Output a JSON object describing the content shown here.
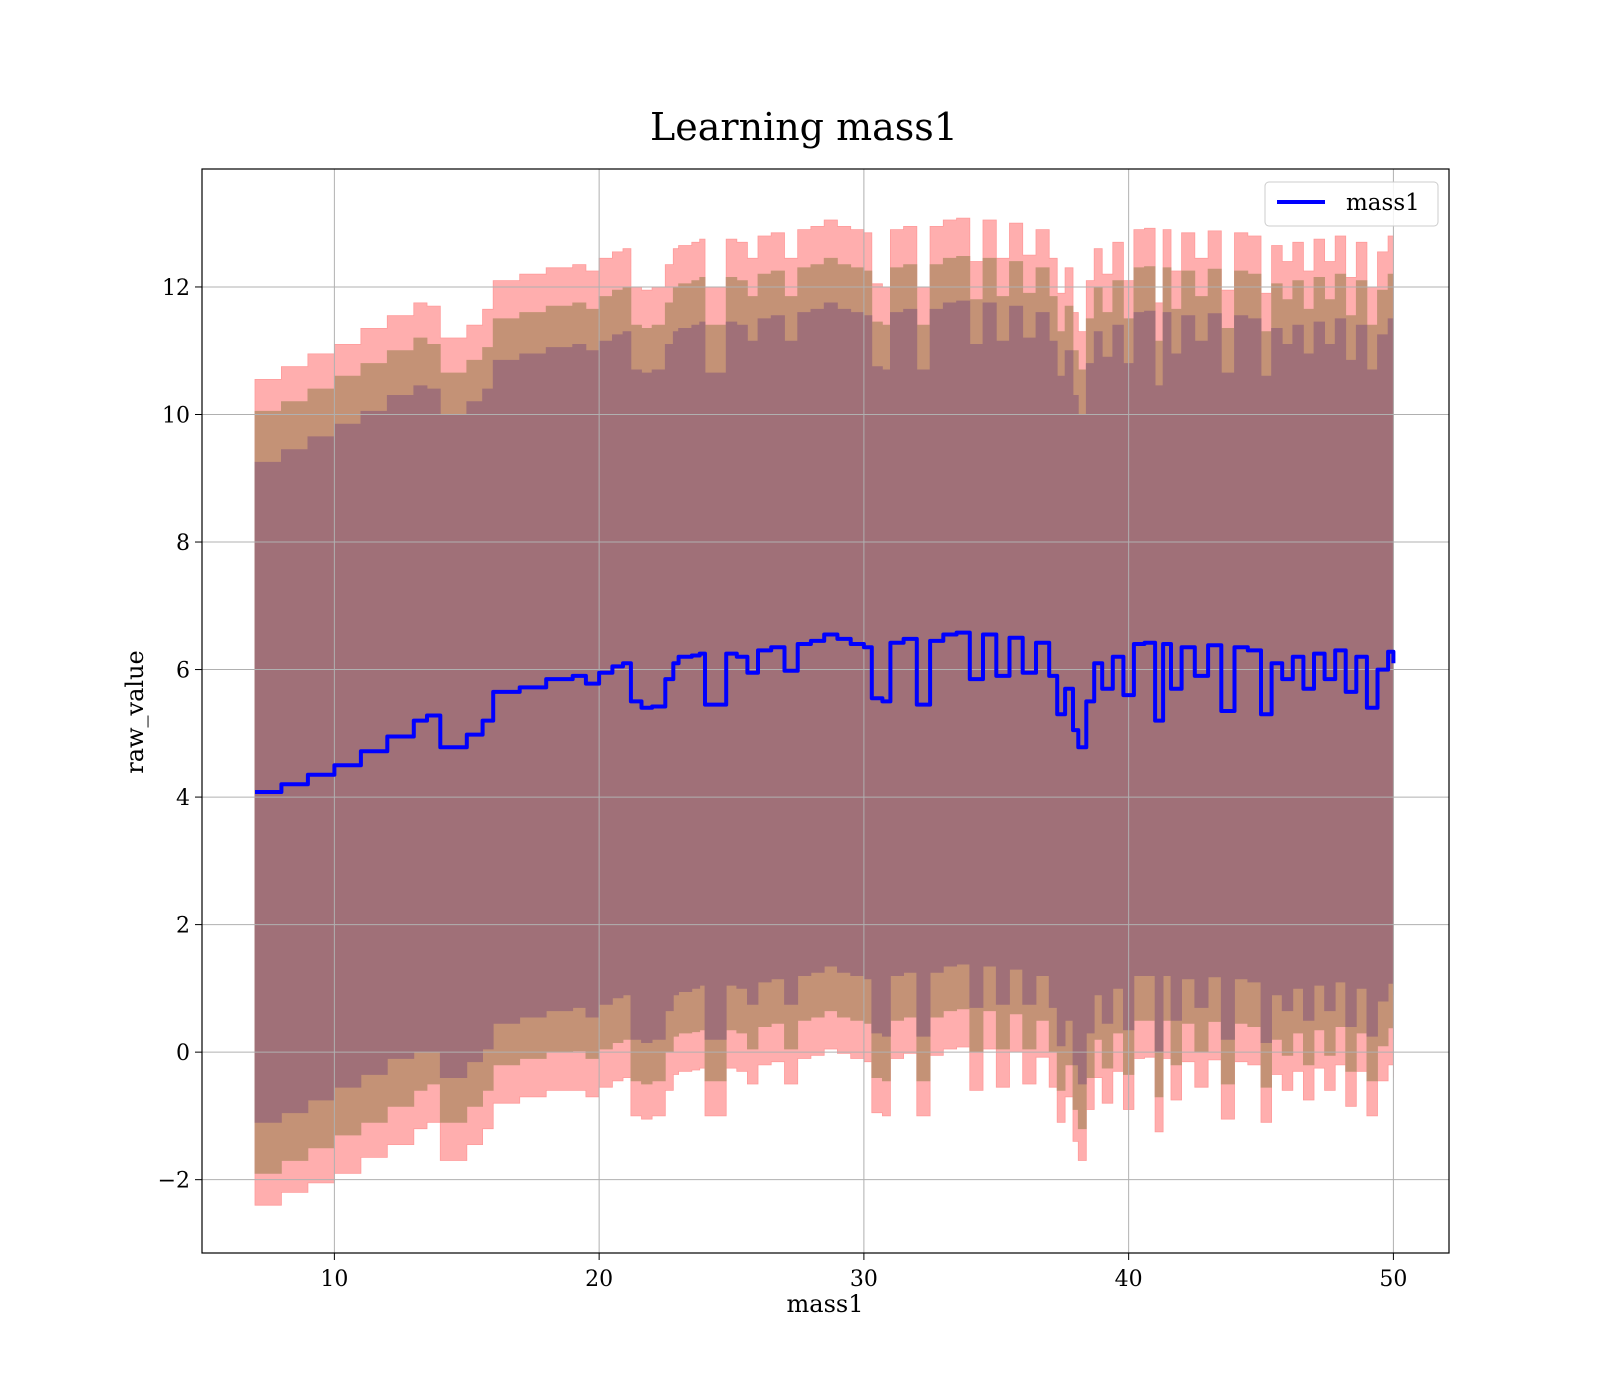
{
  "chart_data": {
    "type": "line",
    "title": "Learning mass1",
    "xlabel": "mass1",
    "ylabel": "raw_value",
    "xlim": [
      5,
      52.1
    ],
    "ylim": [
      -3.15,
      13.85
    ],
    "xticks": [
      10,
      20,
      30,
      40,
      50
    ],
    "yticks": [
      -2,
      0,
      2,
      4,
      6,
      8,
      10,
      12
    ],
    "ytick_labels": [
      "−2",
      "0",
      "2",
      "4",
      "6",
      "8",
      "10",
      "12"
    ],
    "xtick_labels": [
      "10",
      "20",
      "30",
      "40",
      "50"
    ],
    "grid": true,
    "legend": {
      "placement": "top-right",
      "entries": [
        "mass1"
      ]
    },
    "colors": {
      "line": "#0000ff",
      "band_outer": "#ff9a9a",
      "band_mid": "#c49276",
      "band_inner": "#a07078",
      "grid": "#b0b0b0"
    },
    "series": [
      {
        "name": "mass1",
        "x": [
          7.0,
          8.0,
          9.0,
          10.0,
          11.0,
          12.0,
          13.0,
          13.5,
          14.0,
          15.0,
          15.6,
          16.0,
          17.0,
          18.0,
          19.0,
          19.5,
          20.0,
          20.5,
          20.9,
          21.2,
          21.6,
          22.0,
          22.5,
          22.8,
          23.0,
          23.5,
          23.8,
          24.0,
          24.5,
          24.8,
          25.2,
          25.6,
          26.0,
          26.5,
          27.0,
          27.5,
          28.0,
          28.5,
          29.0,
          29.5,
          30.0,
          30.3,
          30.7,
          31.0,
          31.5,
          32.0,
          32.5,
          33.0,
          33.5,
          34.0,
          34.5,
          35.0,
          35.5,
          36.0,
          36.5,
          37.0,
          37.3,
          37.6,
          37.9,
          38.1,
          38.4,
          38.7,
          39.0,
          39.4,
          39.8,
          40.2,
          40.6,
          41.0,
          41.3,
          41.6,
          42.0,
          42.5,
          43.0,
          43.5,
          44.0,
          44.5,
          45.0,
          45.4,
          45.8,
          46.2,
          46.6,
          47.0,
          47.4,
          47.8,
          48.2,
          48.6,
          49.0,
          49.4,
          49.8,
          50.0
        ],
        "y": [
          4.08,
          4.2,
          4.35,
          4.5,
          4.72,
          4.95,
          5.2,
          5.28,
          4.78,
          4.98,
          5.2,
          5.65,
          5.72,
          5.85,
          5.9,
          5.78,
          5.95,
          6.05,
          6.1,
          5.5,
          5.4,
          5.42,
          5.85,
          6.1,
          6.2,
          6.22,
          6.25,
          5.45,
          5.45,
          6.25,
          6.2,
          5.95,
          6.3,
          6.35,
          5.98,
          6.4,
          6.45,
          6.55,
          6.48,
          6.4,
          6.35,
          5.55,
          5.5,
          6.42,
          6.48,
          5.45,
          6.45,
          6.55,
          6.58,
          5.85,
          6.55,
          5.9,
          6.5,
          5.95,
          6.42,
          5.9,
          5.3,
          5.7,
          5.05,
          4.78,
          5.5,
          6.1,
          5.7,
          6.2,
          5.6,
          6.4,
          6.42,
          5.2,
          6.4,
          5.7,
          6.35,
          5.9,
          6.38,
          5.35,
          6.35,
          6.3,
          5.3,
          6.1,
          5.85,
          6.2,
          5.7,
          6.25,
          5.85,
          6.3,
          5.65,
          6.2,
          5.4,
          6.0,
          6.28,
          6.1
        ]
      }
    ],
    "bands": [
      {
        "name": "outer",
        "x": [
          7.0,
          8.0,
          9.0,
          10.0,
          11.0,
          12.0,
          13.0,
          13.5,
          14.0,
          15.0,
          15.6,
          16.0,
          17.0,
          18.0,
          19.0,
          19.5,
          20.0,
          20.5,
          20.9,
          21.2,
          21.6,
          22.0,
          22.5,
          22.8,
          23.0,
          23.5,
          23.8,
          24.0,
          24.5,
          24.8,
          25.2,
          25.6,
          26.0,
          26.5,
          27.0,
          27.5,
          28.0,
          28.5,
          29.0,
          29.5,
          30.0,
          30.3,
          30.7,
          31.0,
          31.5,
          32.0,
          32.5,
          33.0,
          33.5,
          34.0,
          34.5,
          35.0,
          35.5,
          36.0,
          36.5,
          37.0,
          37.3,
          37.6,
          37.9,
          38.1,
          38.4,
          38.7,
          39.0,
          39.4,
          39.8,
          40.2,
          40.6,
          41.0,
          41.3,
          41.6,
          42.0,
          42.5,
          43.0,
          43.5,
          44.0,
          44.5,
          45.0,
          45.4,
          45.8,
          46.2,
          46.6,
          47.0,
          47.4,
          47.8,
          48.2,
          48.6,
          49.0,
          49.4,
          49.8,
          50.0
        ],
        "lower": [
          -2.4,
          -2.2,
          -2.05,
          -1.9,
          -1.65,
          -1.45,
          -1.2,
          -1.1,
          -1.7,
          -1.45,
          -1.2,
          -0.8,
          -0.7,
          -0.6,
          -0.6,
          -0.7,
          -0.55,
          -0.45,
          -0.4,
          -1.0,
          -1.05,
          -1.0,
          -0.6,
          -0.35,
          -0.3,
          -0.28,
          -0.25,
          -1.0,
          -1.0,
          -0.25,
          -0.3,
          -0.5,
          -0.2,
          -0.15,
          -0.5,
          -0.1,
          -0.05,
          0.05,
          -0.02,
          -0.1,
          -0.15,
          -0.95,
          -1.0,
          -0.1,
          -0.02,
          -1.0,
          -0.05,
          0.05,
          0.08,
          -0.6,
          0.05,
          -0.55,
          0.0,
          -0.5,
          -0.08,
          -0.55,
          -1.1,
          -0.7,
          -1.4,
          -1.7,
          -0.9,
          -0.4,
          -0.8,
          -0.3,
          -0.9,
          -0.1,
          -0.08,
          -1.25,
          -0.1,
          -0.75,
          -0.15,
          -0.55,
          -0.12,
          -1.05,
          -0.15,
          -0.2,
          -1.1,
          -0.35,
          -0.6,
          -0.3,
          -0.75,
          -0.25,
          -0.6,
          -0.2,
          -0.85,
          -0.3,
          -1.0,
          -0.45,
          -0.2,
          -0.4
        ],
        "upper": [
          10.55,
          10.75,
          10.95,
          11.1,
          11.35,
          11.55,
          11.75,
          11.7,
          11.2,
          11.4,
          11.65,
          12.1,
          12.2,
          12.3,
          12.35,
          12.25,
          12.45,
          12.55,
          12.6,
          12.0,
          11.95,
          12.0,
          12.35,
          12.6,
          12.65,
          12.7,
          12.75,
          12.0,
          12.0,
          12.75,
          12.7,
          12.45,
          12.8,
          12.85,
          12.45,
          12.9,
          12.95,
          13.05,
          12.95,
          12.9,
          12.85,
          12.05,
          12.0,
          12.9,
          12.95,
          12.0,
          12.95,
          13.05,
          13.08,
          12.4,
          13.05,
          12.45,
          13.0,
          12.5,
          12.9,
          12.45,
          11.9,
          12.3,
          11.6,
          11.3,
          12.1,
          12.6,
          12.2,
          12.7,
          12.1,
          12.9,
          12.92,
          11.75,
          12.9,
          12.25,
          12.85,
          12.45,
          12.88,
          11.95,
          12.85,
          12.8,
          11.9,
          12.65,
          12.4,
          12.7,
          12.25,
          12.75,
          12.4,
          12.8,
          12.15,
          12.7,
          12.0,
          12.55,
          12.8,
          12.8
        ]
      },
      {
        "name": "middle",
        "x": [
          7.0,
          8.0,
          9.0,
          10.0,
          11.0,
          12.0,
          13.0,
          13.5,
          14.0,
          15.0,
          15.6,
          16.0,
          17.0,
          18.0,
          19.0,
          19.5,
          20.0,
          20.5,
          20.9,
          21.2,
          21.6,
          22.0,
          22.5,
          22.8,
          23.0,
          23.5,
          23.8,
          24.0,
          24.5,
          24.8,
          25.2,
          25.6,
          26.0,
          26.5,
          27.0,
          27.5,
          28.0,
          28.5,
          29.0,
          29.5,
          30.0,
          30.3,
          30.7,
          31.0,
          31.5,
          32.0,
          32.5,
          33.0,
          33.5,
          34.0,
          34.5,
          35.0,
          35.5,
          36.0,
          36.5,
          37.0,
          37.3,
          37.6,
          37.9,
          38.1,
          38.4,
          38.7,
          39.0,
          39.4,
          39.8,
          40.2,
          40.6,
          41.0,
          41.3,
          41.6,
          42.0,
          42.5,
          43.0,
          43.5,
          44.0,
          44.5,
          45.0,
          45.4,
          45.8,
          46.2,
          46.6,
          47.0,
          47.4,
          47.8,
          48.2,
          48.6,
          49.0,
          49.4,
          49.8,
          50.0
        ],
        "lower": [
          -1.9,
          -1.7,
          -1.5,
          -1.3,
          -1.1,
          -0.85,
          -0.6,
          -0.5,
          -1.1,
          -0.85,
          -0.6,
          -0.2,
          -0.1,
          0.0,
          0.02,
          -0.1,
          0.05,
          0.15,
          0.2,
          -0.45,
          -0.5,
          -0.45,
          0.0,
          0.25,
          0.3,
          0.32,
          0.35,
          -0.45,
          -0.45,
          0.35,
          0.3,
          0.05,
          0.4,
          0.45,
          0.05,
          0.5,
          0.55,
          0.65,
          0.55,
          0.5,
          0.45,
          -0.4,
          -0.45,
          0.5,
          0.55,
          -0.45,
          0.55,
          0.65,
          0.68,
          0.0,
          0.65,
          0.05,
          0.6,
          0.05,
          0.5,
          0.0,
          -0.6,
          -0.2,
          -0.9,
          -1.2,
          -0.4,
          0.2,
          -0.25,
          0.3,
          -0.35,
          0.5,
          0.5,
          -0.7,
          0.5,
          -0.2,
          0.45,
          0.0,
          0.48,
          -0.5,
          0.45,
          0.4,
          -0.55,
          0.2,
          -0.05,
          0.3,
          -0.2,
          0.35,
          -0.05,
          0.4,
          -0.3,
          0.3,
          -0.45,
          0.1,
          0.38,
          0.2
        ],
        "upper": [
          10.05,
          10.2,
          10.4,
          10.6,
          10.8,
          11.0,
          11.2,
          11.1,
          10.65,
          10.85,
          11.05,
          11.5,
          11.6,
          11.7,
          11.75,
          11.65,
          11.85,
          11.95,
          12.0,
          11.4,
          11.35,
          11.4,
          11.75,
          12.0,
          12.05,
          12.1,
          12.15,
          11.4,
          11.4,
          12.15,
          12.1,
          11.85,
          12.2,
          12.25,
          11.85,
          12.3,
          12.35,
          12.45,
          12.35,
          12.3,
          12.25,
          11.45,
          11.4,
          12.3,
          12.35,
          11.4,
          12.35,
          12.45,
          12.48,
          11.8,
          12.45,
          11.85,
          12.4,
          11.9,
          12.3,
          11.85,
          11.3,
          11.7,
          11.0,
          10.7,
          11.5,
          12.0,
          11.6,
          12.1,
          11.5,
          12.3,
          12.32,
          11.15,
          12.3,
          11.65,
          12.25,
          11.85,
          12.28,
          11.35,
          12.25,
          12.2,
          11.3,
          12.05,
          11.8,
          12.1,
          11.65,
          12.15,
          11.8,
          12.2,
          11.55,
          12.1,
          11.4,
          11.95,
          12.2,
          12.2
        ]
      },
      {
        "name": "inner",
        "x": [
          7.0,
          8.0,
          9.0,
          10.0,
          11.0,
          12.0,
          13.0,
          13.5,
          14.0,
          15.0,
          15.6,
          16.0,
          17.0,
          18.0,
          19.0,
          19.5,
          20.0,
          20.5,
          20.9,
          21.2,
          21.6,
          22.0,
          22.5,
          22.8,
          23.0,
          23.5,
          23.8,
          24.0,
          24.5,
          24.8,
          25.2,
          25.6,
          26.0,
          26.5,
          27.0,
          27.5,
          28.0,
          28.5,
          29.0,
          29.5,
          30.0,
          30.3,
          30.7,
          31.0,
          31.5,
          32.0,
          32.5,
          33.0,
          33.5,
          34.0,
          34.5,
          35.0,
          35.5,
          36.0,
          36.5,
          37.0,
          37.3,
          37.6,
          37.9,
          38.1,
          38.4,
          38.7,
          39.0,
          39.4,
          39.8,
          40.2,
          40.6,
          41.0,
          41.3,
          41.6,
          42.0,
          42.5,
          43.0,
          43.5,
          44.0,
          44.5,
          45.0,
          45.4,
          45.8,
          46.2,
          46.6,
          47.0,
          47.4,
          47.8,
          48.2,
          48.6,
          49.0,
          49.4,
          49.8,
          50.0
        ],
        "lower": [
          -1.1,
          -0.95,
          -0.75,
          -0.55,
          -0.35,
          -0.1,
          0.0,
          0.0,
          -0.4,
          -0.15,
          0.05,
          0.45,
          0.55,
          0.65,
          0.7,
          0.55,
          0.75,
          0.85,
          0.9,
          0.2,
          0.15,
          0.2,
          0.65,
          0.9,
          0.95,
          1.0,
          1.05,
          0.2,
          0.2,
          1.05,
          1.0,
          0.75,
          1.1,
          1.15,
          0.75,
          1.2,
          1.25,
          1.35,
          1.25,
          1.2,
          1.15,
          0.3,
          0.25,
          1.2,
          1.25,
          0.25,
          1.25,
          1.35,
          1.38,
          0.7,
          1.35,
          0.75,
          1.3,
          0.75,
          1.2,
          0.7,
          0.1,
          0.5,
          -0.2,
          -0.5,
          0.3,
          0.9,
          0.45,
          1.0,
          0.35,
          1.2,
          1.2,
          0.0,
          1.2,
          0.5,
          1.15,
          0.7,
          1.18,
          0.2,
          1.15,
          1.1,
          0.15,
          0.9,
          0.65,
          1.0,
          0.5,
          1.05,
          0.65,
          1.1,
          0.4,
          1.0,
          0.25,
          0.8,
          1.08,
          0.9
        ],
        "upper": [
          9.25,
          9.45,
          9.65,
          9.85,
          10.05,
          10.3,
          10.45,
          10.4,
          10.0,
          10.2,
          10.4,
          10.85,
          10.95,
          11.05,
          11.1,
          11.0,
          11.15,
          11.25,
          11.3,
          10.7,
          10.65,
          10.7,
          11.1,
          11.3,
          11.35,
          11.4,
          11.45,
          10.65,
          10.65,
          11.45,
          11.4,
          11.15,
          11.5,
          11.55,
          11.15,
          11.6,
          11.65,
          11.75,
          11.65,
          11.6,
          11.55,
          10.75,
          10.7,
          11.6,
          11.65,
          10.7,
          11.65,
          11.75,
          11.78,
          11.1,
          11.75,
          11.15,
          11.7,
          11.2,
          11.6,
          11.15,
          10.6,
          11.0,
          10.3,
          10.0,
          10.8,
          11.3,
          10.9,
          11.4,
          10.8,
          11.6,
          11.62,
          10.45,
          11.6,
          10.95,
          11.55,
          11.15,
          11.58,
          10.65,
          11.55,
          11.5,
          10.6,
          11.35,
          11.1,
          11.4,
          10.95,
          11.45,
          11.1,
          11.5,
          10.85,
          11.4,
          10.7,
          11.25,
          11.5,
          11.45
        ]
      }
    ]
  }
}
